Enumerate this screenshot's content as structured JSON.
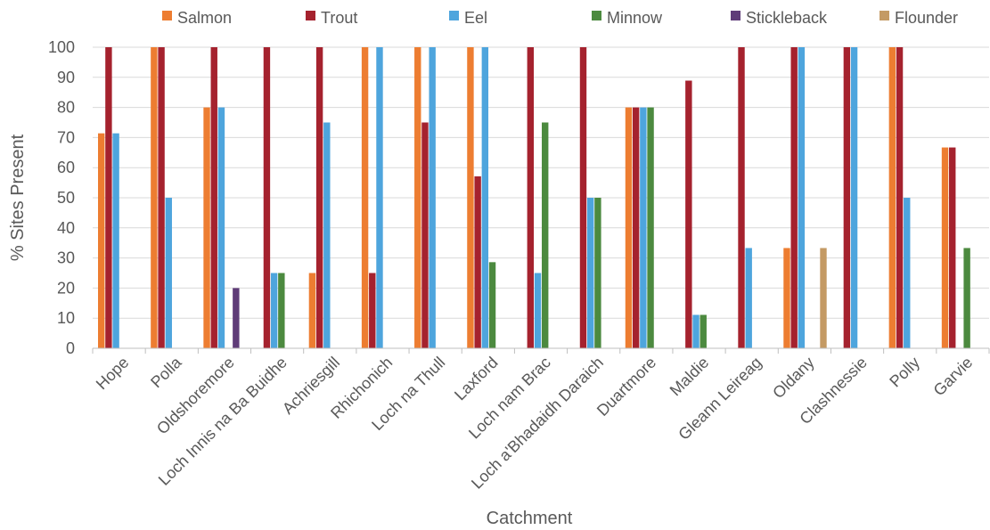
{
  "chart_data": {
    "type": "bar",
    "title": "",
    "xlabel": "Catchment",
    "ylabel": "% Sites Present",
    "ylim": [
      0,
      100
    ],
    "yticks": [
      0,
      10,
      20,
      30,
      40,
      50,
      60,
      70,
      80,
      90,
      100
    ],
    "grid": true,
    "legend_position": "top",
    "categories": [
      "Hope",
      "Polla",
      "Oldshoremore",
      "Loch Innis na Ba Buidhe",
      "Achriesgill",
      "Rhichonich",
      "Loch na Thull",
      "Laxford",
      "Loch nam Brac",
      "Loch a'Bhadaidh Daraich",
      "Duartmore",
      "Maldie",
      "Gleann Leireag",
      "Oldany",
      "Clashnessie",
      "Polly",
      "Garvie"
    ],
    "series": [
      {
        "name": "Salmon",
        "color": "#ED7D31",
        "values": [
          71.4,
          100,
          80,
          0,
          25,
          100,
          100,
          100,
          0,
          0,
          80,
          0,
          0,
          33.3,
          0,
          100,
          66.7
        ]
      },
      {
        "name": "Trout",
        "color": "#A5222E",
        "values": [
          100,
          100,
          100,
          100,
          100,
          25,
          75,
          57.1,
          100,
          100,
          80,
          88.9,
          100,
          100,
          100,
          100,
          66.7
        ]
      },
      {
        "name": "Eel",
        "color": "#4EA5DD",
        "values": [
          71.4,
          50,
          80,
          25,
          75,
          100,
          100,
          100,
          25,
          50,
          80,
          11.1,
          33.3,
          100,
          100,
          50,
          0
        ]
      },
      {
        "name": "Minnow",
        "color": "#4C8A3F",
        "values": [
          0,
          0,
          0,
          25,
          0,
          0,
          0,
          28.6,
          75,
          50,
          80,
          11.1,
          0,
          0,
          0,
          0,
          33.3
        ]
      },
      {
        "name": "Stickleback",
        "color": "#5F3C78",
        "values": [
          0,
          0,
          20,
          0,
          0,
          0,
          0,
          0,
          0,
          0,
          0,
          0,
          0,
          0,
          0,
          0,
          0
        ]
      },
      {
        "name": "Flounder",
        "color": "#C49A64",
        "values": [
          0,
          0,
          0,
          0,
          0,
          0,
          0,
          0,
          0,
          0,
          0,
          0,
          0,
          33.3,
          0,
          0,
          0
        ]
      }
    ]
  }
}
